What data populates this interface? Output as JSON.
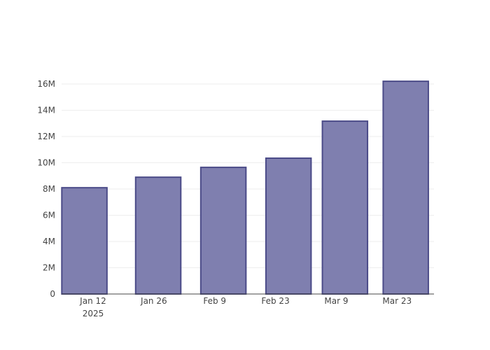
{
  "chart_data": {
    "type": "bar",
    "x": [
      "2025-01-10",
      "2025-01-27",
      "2025-02-11",
      "2025-02-26",
      "2025-03-11",
      "2025-03-25"
    ],
    "values": [
      8100000,
      8900000,
      9650000,
      10350000,
      13170000,
      16210000
    ],
    "color": "#7f7faf",
    "edge_color": "#4b4b88",
    "xlim": [
      "2025-01-04T18:00",
      "2025-03-31T12:00"
    ],
    "xticks": [
      {
        "value": "2025-01-12",
        "label": "Jan 12\n2025"
      },
      {
        "value": "2025-01-26",
        "label": "Jan 26"
      },
      {
        "value": "2025-02-09",
        "label": "Feb 9"
      },
      {
        "value": "2025-02-23",
        "label": "Feb 23"
      },
      {
        "value": "2025-03-09",
        "label": "Mar 9"
      },
      {
        "value": "2025-03-23",
        "label": "Mar 23"
      }
    ],
    "ylim": [
      0,
      17070000
    ],
    "yticks": [
      0,
      {
        "value": 2000000,
        "label": "2M"
      },
      {
        "value": 4000000,
        "label": "4M"
      },
      {
        "value": 6000000,
        "label": "6M"
      },
      {
        "value": 8000000,
        "label": "8M"
      },
      {
        "value": 10000000,
        "label": "10M"
      },
      {
        "value": 12000000,
        "label": "12M"
      },
      {
        "value": 14000000,
        "label": "14M"
      },
      {
        "value": 16000000,
        "label": "16M"
      }
    ],
    "grid": true
  }
}
